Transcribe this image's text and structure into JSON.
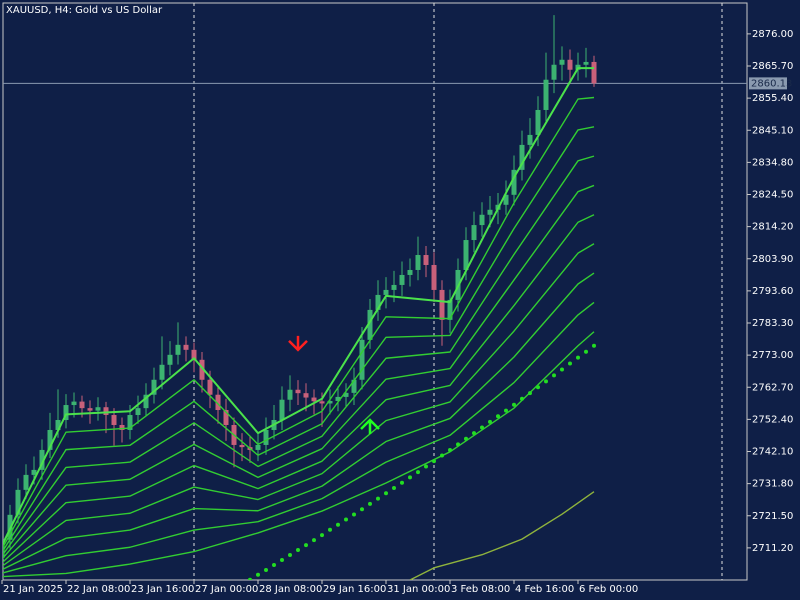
{
  "chart_data": {
    "type": "candlestick",
    "title": "XAUUSD, H4:  Gold vs US Dollar",
    "categories": [
      "21 Jan 2025",
      null,
      null,
      null,
      null,
      null,
      null,
      null,
      "22 Jan 08:00",
      null,
      null,
      null,
      null,
      null,
      null,
      null,
      "23 Jan 16:00",
      null,
      null,
      null,
      null,
      null,
      null,
      null,
      "27 Jan 00:00",
      null,
      null,
      null,
      null,
      null,
      null,
      null,
      "28 Jan 08:00",
      null,
      null,
      null,
      null,
      null,
      null,
      null,
      "29 Jan 16:00",
      null,
      null,
      null,
      null,
      null,
      null,
      null,
      "31 Jan 00:00",
      null,
      null,
      null,
      null,
      null,
      null,
      null,
      "3 Feb 08:00",
      null,
      null,
      null,
      null,
      null,
      null,
      null,
      "4 Feb 16:00",
      null,
      null,
      null,
      null,
      null,
      null,
      null,
      "6 Feb 00:00",
      null,
      null
    ],
    "open": [
      2708.0,
      2713.8,
      2721.8,
      2729.8,
      2734.6,
      2736.2,
      2742.6,
      2749.0,
      2752.2,
      2757.0,
      2758.1,
      2756.0,
      2755.2,
      2756.3,
      2753.8,
      2750.6,
      2749.0,
      2753.8,
      2756.0,
      2760.3,
      2765.1,
      2769.9,
      2773.1,
      2776.3,
      2774.7,
      2771.5,
      2765.1,
      2760.3,
      2755.4,
      2750.6,
      2744.2,
      2743.5,
      2742.6,
      2744.2,
      2749.0,
      2752.2,
      2758.7,
      2761.9,
      2760.8,
      2759.4,
      2758.2,
      2757.5,
      2758.3,
      2759.6,
      2760.9,
      2765.1,
      2777.9,
      2787.5,
      2792.3,
      2793.9,
      2795.5,
      2798.7,
      2800.3,
      2805.1,
      2801.9,
      2793.9,
      2784.3,
      2790.7,
      2800.3,
      2809.9,
      2814.7,
      2818.0,
      2819.6,
      2821.2,
      2824.4,
      2832.4,
      2840.4,
      2843.6,
      2851.6,
      2861.3,
      2866.1,
      2867.7,
      2864.5,
      2866.1,
      2867.0
    ],
    "high": [
      2716.5,
      2725.0,
      2733.5,
      2738.0,
      2740.5,
      2746.0,
      2754.5,
      2762.0,
      2760.5,
      2761.0,
      2760.0,
      2758.5,
      2759.5,
      2758.0,
      2756.0,
      2753.0,
      2757.0,
      2760.0,
      2764.0,
      2769.0,
      2779.0,
      2777.5,
      2783.5,
      2779.0,
      2777.0,
      2774.0,
      2768.0,
      2763.0,
      2759.0,
      2753.0,
      2748.0,
      2747.0,
      2748.0,
      2753.0,
      2757.0,
      2763.0,
      2766.5,
      2765.0,
      2764.0,
      2762.0,
      2761.0,
      2762.0,
      2763.0,
      2764.0,
      2769.0,
      2782.0,
      2791.0,
      2797.0,
      2798.0,
      2800.0,
      2803.0,
      2804.0,
      2811.0,
      2808.0,
      2806.0,
      2797.0,
      2794.0,
      2804.0,
      2814.0,
      2819.0,
      2822.0,
      2824.0,
      2825.0,
      2829.0,
      2837.0,
      2845.0,
      2849.0,
      2856.0,
      2870.0,
      2882.0,
      2872.0,
      2871.0,
      2870.0,
      2871.5,
      2869.0
    ],
    "low": [
      2704.0,
      2711.0,
      2719.0,
      2727.0,
      2731.5,
      2733.0,
      2740.0,
      2746.5,
      2749.5,
      2753.0,
      2753.0,
      2751.0,
      2752.0,
      2748.0,
      2744.0,
      2745.0,
      2746.0,
      2751.0,
      2753.5,
      2757.5,
      2762.0,
      2766.5,
      2770.0,
      2771.0,
      2767.5,
      2761.0,
      2756.0,
      2751.0,
      2745.5,
      2737.0,
      2739.0,
      2738.5,
      2739.0,
      2741.0,
      2746.0,
      2749.0,
      2755.0,
      2757.0,
      2755.0,
      2754.0,
      2750.0,
      2754.0,
      2755.0,
      2756.5,
      2757.0,
      2762.0,
      2775.0,
      2784.0,
      2788.0,
      2790.0,
      2792.0,
      2795.0,
      2797.0,
      2798.0,
      2790.0,
      2776.0,
      2780.0,
      2787.0,
      2797.0,
      2806.0,
      2811.0,
      2814.0,
      2815.0,
      2818.0,
      2821.0,
      2829.0,
      2836.0,
      2840.0,
      2848.0,
      2857.0,
      2861.0,
      2860.0,
      2861.0,
      2862.0,
      2859.0
    ],
    "close": [
      2713.8,
      2721.8,
      2729.8,
      2734.6,
      2736.2,
      2742.6,
      2749.0,
      2752.2,
      2757.0,
      2758.1,
      2756.0,
      2755.2,
      2756.3,
      2753.8,
      2750.6,
      2749.0,
      2753.8,
      2756.0,
      2760.3,
      2765.1,
      2769.9,
      2773.1,
      2776.3,
      2774.7,
      2771.5,
      2765.1,
      2760.3,
      2755.4,
      2750.6,
      2744.2,
      2743.5,
      2742.6,
      2744.2,
      2749.0,
      2752.2,
      2758.7,
      2761.9,
      2760.8,
      2759.4,
      2758.2,
      2757.5,
      2758.3,
      2759.6,
      2760.9,
      2765.1,
      2777.9,
      2787.5,
      2792.3,
      2793.9,
      2795.5,
      2798.7,
      2800.3,
      2805.1,
      2801.9,
      2793.9,
      2784.3,
      2790.7,
      2800.3,
      2809.9,
      2814.7,
      2818.0,
      2819.6,
      2821.2,
      2824.4,
      2832.4,
      2840.4,
      2843.6,
      2851.6,
      2861.3,
      2866.1,
      2867.7,
      2864.5,
      2866.1,
      2867.0,
      2860.13
    ],
    "up_color": "#3cb371",
    "down_color": "#c8607a",
    "series": [
      {
        "style": "line",
        "color": "#4be24b",
        "x": [
          0,
          8,
          16,
          24,
          32,
          40,
          48,
          56,
          64,
          72,
          74
        ],
        "values": [
          2712,
          2754,
          2755,
          2772,
          2748,
          2759,
          2792,
          2790,
          2830,
          2865,
          2865
        ]
      },
      {
        "style": "line",
        "color": "#32cd32",
        "x": [
          0,
          8,
          16,
          24,
          32,
          40,
          48,
          56,
          64,
          72,
          74
        ],
        "values": [
          2710.9,
          2748.3,
          2749.6,
          2765.1,
          2744.4,
          2755,
          2785.3,
          2784.7,
          2821.8,
          2855.1,
          2855.6
        ]
      },
      {
        "style": "line",
        "color": "#32cd32",
        "x": [
          0,
          8,
          16,
          24,
          32,
          40,
          48,
          56,
          64,
          72,
          74
        ],
        "values": [
          2709.8,
          2742.7,
          2744.1,
          2758.2,
          2740.9,
          2751,
          2778.7,
          2779.3,
          2813.6,
          2845.2,
          2846.2
        ]
      },
      {
        "style": "line",
        "color": "#32cd32",
        "x": [
          0,
          8,
          16,
          24,
          32,
          40,
          48,
          56,
          64,
          72,
          74
        ],
        "values": [
          2708.7,
          2737,
          2738.7,
          2751.3,
          2737.3,
          2747,
          2772,
          2774,
          2805.3,
          2835.3,
          2836.8
        ]
      },
      {
        "style": "line",
        "color": "#32cd32",
        "x": [
          0,
          8,
          16,
          24,
          32,
          40,
          48,
          56,
          64,
          72,
          74
        ],
        "values": [
          2707.6,
          2731.3,
          2733.2,
          2744.4,
          2733.8,
          2743,
          2765.3,
          2768.7,
          2797.1,
          2825.4,
          2827.4
        ]
      },
      {
        "style": "line",
        "color": "#32cd32",
        "x": [
          0,
          8,
          16,
          24,
          32,
          40,
          48,
          56,
          64,
          72,
          74
        ],
        "values": [
          2706.4,
          2725.7,
          2727.8,
          2737.6,
          2730.2,
          2739,
          2758.7,
          2763.3,
          2788.9,
          2815.6,
          2818
        ]
      },
      {
        "style": "line",
        "color": "#32cd32",
        "x": [
          0,
          8,
          16,
          24,
          32,
          40,
          48,
          56,
          64,
          72,
          74
        ],
        "values": [
          2705.3,
          2720,
          2722.3,
          2730.7,
          2726.7,
          2735,
          2752,
          2758,
          2780.7,
          2805.7,
          2808.7
        ]
      },
      {
        "style": "line",
        "color": "#32cd32",
        "x": [
          0,
          8,
          16,
          24,
          32,
          40,
          48,
          56,
          64,
          72,
          74
        ],
        "values": [
          2704.2,
          2714.3,
          2716.9,
          2723.8,
          2723.1,
          2731,
          2745.3,
          2752.7,
          2772.4,
          2795.8,
          2799.3
        ]
      },
      {
        "style": "line",
        "color": "#32cd32",
        "x": [
          0,
          8,
          16,
          24,
          32,
          40,
          48,
          56,
          64,
          72,
          74
        ],
        "values": [
          2703.1,
          2708.7,
          2711.4,
          2716.9,
          2719.6,
          2727,
          2738.7,
          2747.3,
          2764.2,
          2785.9,
          2789.9
        ]
      },
      {
        "style": "line",
        "color": "#32cd32",
        "x": [
          0,
          8,
          16,
          24,
          32,
          40,
          48,
          56,
          64,
          72,
          74
        ],
        "values": [
          2702,
          2703,
          2706,
          2710,
          2716,
          2723,
          2732,
          2742,
          2756,
          2776,
          2780.5
        ]
      },
      {
        "style": "dots",
        "color": "#22dd22",
        "x": [
          31,
          32,
          33,
          34,
          35,
          36,
          37,
          38,
          39,
          40,
          41,
          42,
          43,
          44,
          45,
          46,
          47,
          48,
          49,
          50,
          51,
          52,
          53,
          54,
          55,
          56,
          57,
          58,
          59,
          60,
          61,
          62,
          63,
          64,
          65,
          66,
          67,
          68,
          69,
          70,
          71,
          72,
          73,
          74
        ],
        "values": [
          2701.0,
          2702.6,
          2704.1,
          2705.7,
          2707.3,
          2708.9,
          2710.5,
          2712.1,
          2713.7,
          2715.3,
          2717.0,
          2718.6,
          2720.3,
          2721.9,
          2723.6,
          2725.3,
          2727.0,
          2728.7,
          2730.4,
          2732.1,
          2733.8,
          2735.5,
          2737.3,
          2739.0,
          2740.8,
          2742.6,
          2744.4,
          2746.2,
          2748.0,
          2749.8,
          2751.6,
          2753.4,
          2755.2,
          2757.1,
          2759.0,
          2760.8,
          2762.7,
          2764.6,
          2766.5,
          2768.4,
          2770.3,
          2772.2,
          2774.1,
          2776.0
        ]
      },
      {
        "style": "line",
        "color": "#8fb33d",
        "x": [
          51,
          54,
          60,
          65,
          70,
          74
        ],
        "values": [
          2700.9,
          2704.8,
          2709,
          2714,
          2722,
          2729.2
        ]
      }
    ],
    "signals": [
      {
        "x": 37,
        "value": 2774.7,
        "direction": "down",
        "color": "#ff2020"
      },
      {
        "x": 46,
        "value": 2752.2,
        "direction": "up",
        "color": "#20ff20"
      }
    ],
    "last_price": 2860.13,
    "ylim": [
      2700.9,
      2885.9
    ],
    "yticks": [
      {
        "value": 2711.2,
        "label": "2711.20"
      },
      {
        "value": 2721.5,
        "label": "2721.50"
      },
      {
        "value": 2731.8,
        "label": "2731.80"
      },
      {
        "value": 2742.1,
        "label": "2742.10"
      },
      {
        "value": 2752.4,
        "label": "2752.40"
      },
      {
        "value": 2762.7,
        "label": "2762.70"
      },
      {
        "value": 2773.0,
        "label": "2773.00"
      },
      {
        "value": 2783.3,
        "label": "2783.30"
      },
      {
        "value": 2793.6,
        "label": "2793.60"
      },
      {
        "value": 2803.9,
        "label": "2803.90"
      },
      {
        "value": 2814.2,
        "label": "2814.20"
      },
      {
        "value": 2824.5,
        "label": "2824.50"
      },
      {
        "value": 2834.8,
        "label": "2834.80"
      },
      {
        "value": 2845.1,
        "label": "2845.10"
      },
      {
        "value": 2855.4,
        "label": "2855.40"
      },
      {
        "value": 2865.7,
        "label": "2865.70"
      },
      {
        "value": 2876.0,
        "label": "2876.00"
      }
    ]
  }
}
